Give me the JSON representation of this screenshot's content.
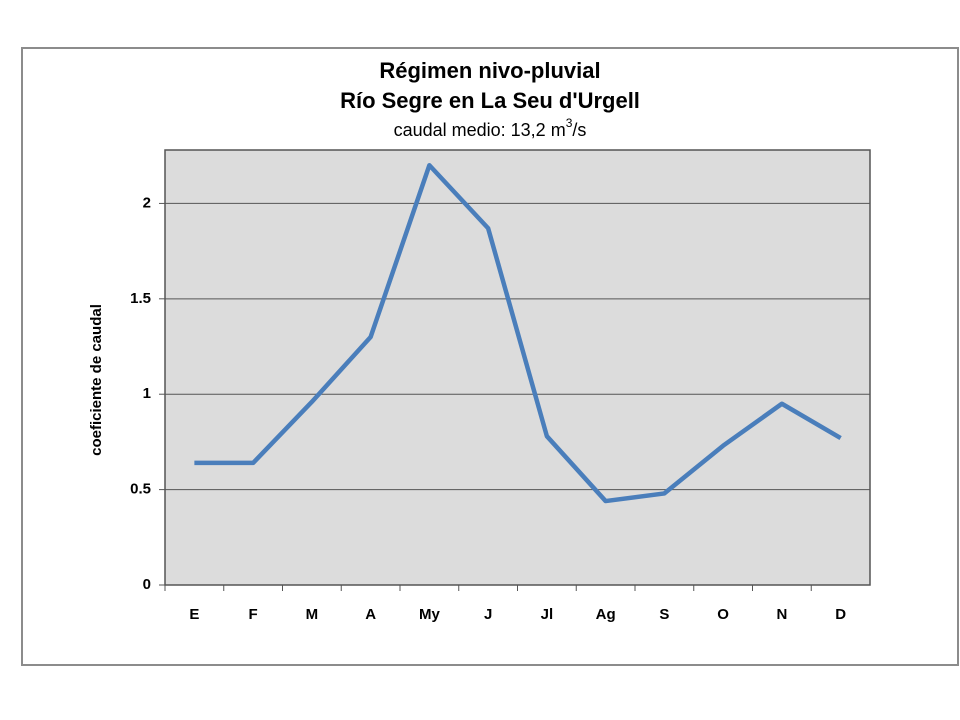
{
  "chart_data": {
    "type": "line",
    "title": [
      "Régimen nivo-pluvial",
      "Río Segre en La Seu d'Urgell"
    ],
    "subtitle": [
      "caudal medio:  13,2 m",
      "3",
      "/s"
    ],
    "y_label": "coeficiente de caudal",
    "categories": [
      "E",
      "F",
      "M",
      "A",
      "My",
      "J",
      "Jl",
      "Ag",
      "S",
      "O",
      "N",
      "D"
    ],
    "values": [
      0.64,
      0.64,
      0.96,
      1.3,
      2.2,
      1.87,
      0.78,
      0.44,
      0.48,
      0.73,
      0.95,
      0.77
    ],
    "color": "#4a7ebb",
    "ylim": [
      0,
      2.28
    ],
    "yticks": [
      0,
      0.5,
      1,
      1.5,
      2
    ],
    "grid": true
  }
}
